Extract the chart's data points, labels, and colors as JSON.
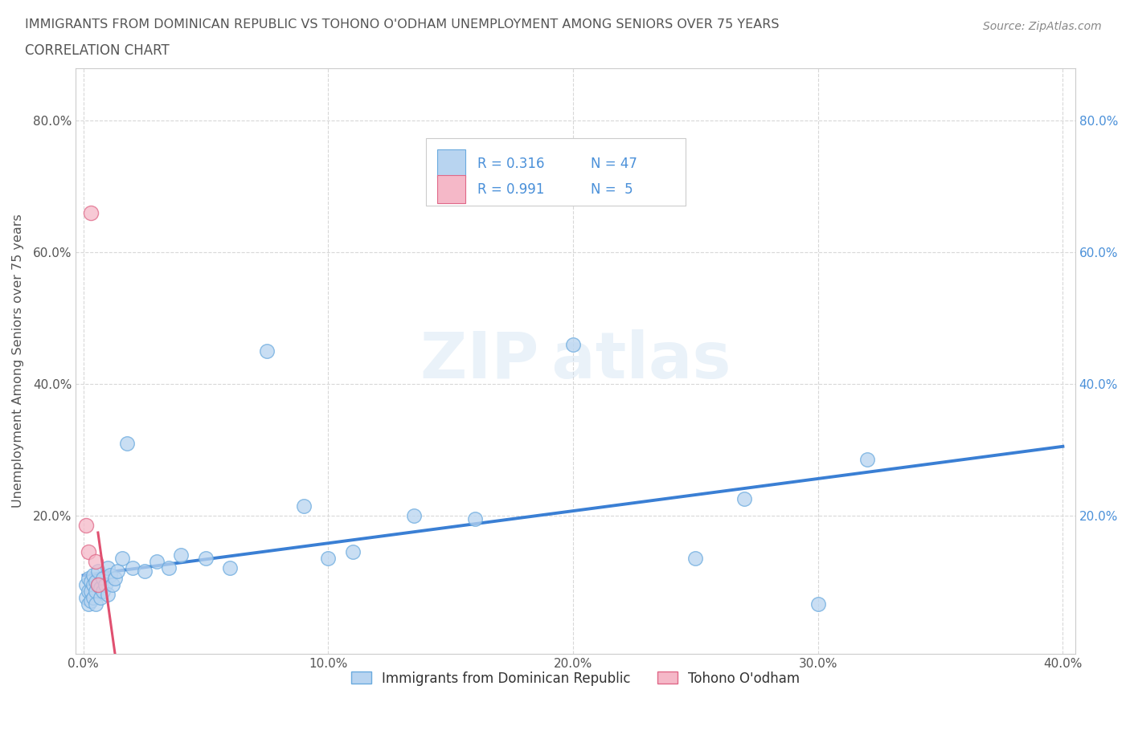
{
  "title_line1": "IMMIGRANTS FROM DOMINICAN REPUBLIC VS TOHONO O'ODHAM UNEMPLOYMENT AMONG SENIORS OVER 75 YEARS",
  "title_line2": "CORRELATION CHART",
  "source_text": "Source: ZipAtlas.com",
  "ylabel": "Unemployment Among Seniors over 75 years",
  "xlim": [
    -0.003,
    0.405
  ],
  "ylim": [
    -0.01,
    0.88
  ],
  "xtick_labels": [
    "0.0%",
    "10.0%",
    "20.0%",
    "30.0%",
    "40.0%"
  ],
  "xtick_values": [
    0.0,
    0.1,
    0.2,
    0.3,
    0.4
  ],
  "ytick_labels": [
    "20.0%",
    "40.0%",
    "60.0%",
    "80.0%"
  ],
  "ytick_values": [
    0.2,
    0.4,
    0.6,
    0.8
  ],
  "blue_scatter_x": [
    0.001,
    0.001,
    0.002,
    0.002,
    0.002,
    0.003,
    0.003,
    0.003,
    0.004,
    0.004,
    0.004,
    0.005,
    0.005,
    0.005,
    0.006,
    0.006,
    0.007,
    0.007,
    0.008,
    0.008,
    0.009,
    0.01,
    0.01,
    0.011,
    0.012,
    0.013,
    0.014,
    0.016,
    0.018,
    0.02,
    0.025,
    0.03,
    0.035,
    0.04,
    0.05,
    0.06,
    0.075,
    0.09,
    0.1,
    0.11,
    0.135,
    0.16,
    0.2,
    0.25,
    0.27,
    0.3,
    0.32
  ],
  "blue_scatter_y": [
    0.095,
    0.075,
    0.105,
    0.085,
    0.065,
    0.1,
    0.085,
    0.07,
    0.095,
    0.11,
    0.075,
    0.1,
    0.085,
    0.065,
    0.095,
    0.115,
    0.09,
    0.075,
    0.105,
    0.085,
    0.095,
    0.12,
    0.08,
    0.11,
    0.095,
    0.105,
    0.115,
    0.135,
    0.31,
    0.12,
    0.115,
    0.13,
    0.12,
    0.14,
    0.135,
    0.12,
    0.45,
    0.215,
    0.135,
    0.145,
    0.2,
    0.195,
    0.46,
    0.135,
    0.225,
    0.065,
    0.285
  ],
  "pink_scatter_x": [
    0.001,
    0.002,
    0.003,
    0.005,
    0.006
  ],
  "pink_scatter_y": [
    0.185,
    0.145,
    0.66,
    0.13,
    0.095
  ],
  "blue_R": 0.316,
  "blue_N": 47,
  "pink_R": 0.991,
  "pink_N": 5,
  "blue_color": "#b8d4f0",
  "pink_color": "#f5b8c8",
  "blue_edge_color": "#6aaade",
  "pink_edge_color": "#e06888",
  "blue_line_color": "#3a7fd4",
  "pink_line_color": "#e05070",
  "legend_label_blue": "Immigrants from Dominican Republic",
  "legend_label_pink": "Tohono O'odham",
  "title_color": "#555555",
  "grid_color": "#d8d8d8",
  "right_tick_color": "#4a90d9",
  "legend_text_color": "#4a90d9"
}
